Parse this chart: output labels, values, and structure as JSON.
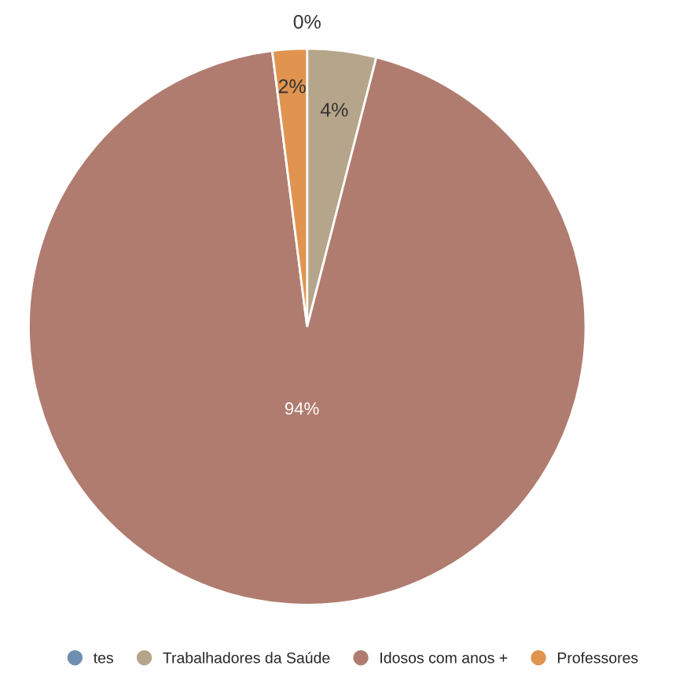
{
  "chart_data": {
    "type": "pie",
    "categories": [
      "tes",
      "Trabalhadores da Saúde",
      "Idosos com anos +",
      "Professores"
    ],
    "values": [
      0,
      4,
      94,
      2
    ],
    "colors": [
      "#6f8fb0",
      "#b5a58a",
      "#b07c70",
      "#e0944f"
    ],
    "value_labels": [
      "0%",
      "4%",
      "94%",
      "2%"
    ],
    "legend": "bottom"
  }
}
